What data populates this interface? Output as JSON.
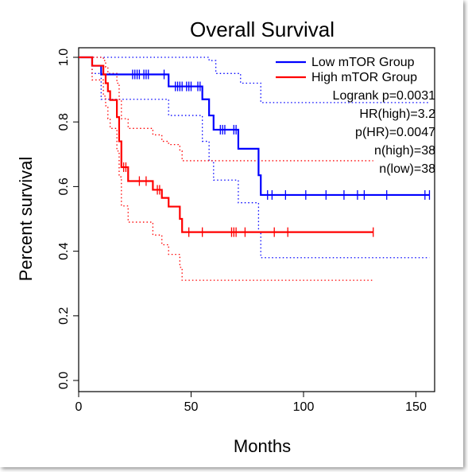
{
  "chart_data": {
    "type": "line",
    "title": "Overall Survival",
    "xlabel": "Months",
    "ylabel": "Percent survival",
    "xlim": [
      0,
      160
    ],
    "ylim": [
      0,
      1
    ],
    "x_ticks": [
      0,
      50,
      100,
      150
    ],
    "x_tick_labels": [
      "0",
      "50",
      "100",
      "150"
    ],
    "y_ticks": [
      0,
      0.2,
      0.4,
      0.6,
      0.8,
      1
    ],
    "y_tick_labels": [
      "0.0",
      "0.2",
      "0.4",
      "0.6",
      "0.8",
      "1.0"
    ],
    "legend_position": "top-right",
    "series": [
      {
        "name": "Low mTOR Group",
        "color": "#0000ff",
        "steps": [
          [
            0,
            1
          ],
          [
            6,
            0.974
          ],
          [
            10,
            0.947
          ],
          [
            40,
            0.91
          ],
          [
            55,
            0.87
          ],
          [
            58,
            0.82
          ],
          [
            60,
            0.776
          ],
          [
            71,
            0.717
          ],
          [
            80,
            0.635
          ],
          [
            81,
            0.574
          ],
          [
            156,
            0.574
          ]
        ],
        "censors": [
          [
            24,
            0.947
          ],
          [
            25,
            0.947
          ],
          [
            26,
            0.947
          ],
          [
            27,
            0.947
          ],
          [
            29,
            0.947
          ],
          [
            30,
            0.947
          ],
          [
            31,
            0.947
          ],
          [
            38,
            0.947
          ],
          [
            43,
            0.91
          ],
          [
            44,
            0.91
          ],
          [
            45,
            0.91
          ],
          [
            46,
            0.91
          ],
          [
            48,
            0.91
          ],
          [
            49,
            0.91
          ],
          [
            50,
            0.91
          ],
          [
            53,
            0.91
          ],
          [
            54,
            0.91
          ],
          [
            63,
            0.776
          ],
          [
            64,
            0.776
          ],
          [
            65,
            0.776
          ],
          [
            69,
            0.776
          ],
          [
            70,
            0.776
          ],
          [
            84,
            0.574
          ],
          [
            86,
            0.574
          ],
          [
            92,
            0.574
          ],
          [
            101,
            0.574
          ],
          [
            110,
            0.574
          ],
          [
            118,
            0.574
          ],
          [
            124,
            0.574
          ],
          [
            127,
            0.574
          ],
          [
            137,
            0.574
          ],
          [
            154,
            0.574
          ],
          [
            156,
            0.574
          ]
        ],
        "ci_upper": [
          [
            0,
            1
          ],
          [
            12,
            1
          ],
          [
            57,
            1
          ],
          [
            58,
            0.99
          ],
          [
            60,
            0.99
          ],
          [
            61,
            0.95
          ],
          [
            70,
            0.95
          ],
          [
            72,
            0.92
          ],
          [
            80,
            0.92
          ],
          [
            81,
            0.86
          ],
          [
            156,
            0.86
          ]
        ],
        "ci_lower": [
          [
            0,
            1
          ],
          [
            6,
            0.95
          ],
          [
            10,
            0.87
          ],
          [
            40,
            0.82
          ],
          [
            55,
            0.74
          ],
          [
            58,
            0.68
          ],
          [
            60,
            0.62
          ],
          [
            71,
            0.55
          ],
          [
            80,
            0.46
          ],
          [
            81,
            0.38
          ],
          [
            156,
            0.38
          ]
        ]
      },
      {
        "name": "High mTOR Group",
        "color": "#ff0000",
        "steps": [
          [
            0,
            1
          ],
          [
            6,
            0.974
          ],
          [
            11,
            0.947
          ],
          [
            12,
            0.92
          ],
          [
            13,
            0.895
          ],
          [
            14,
            0.868
          ],
          [
            17,
            0.815
          ],
          [
            18,
            0.74
          ],
          [
            19,
            0.66
          ],
          [
            22,
            0.617
          ],
          [
            33,
            0.59
          ],
          [
            37,
            0.565
          ],
          [
            40,
            0.538
          ],
          [
            45,
            0.5
          ],
          [
            46,
            0.459
          ],
          [
            131,
            0.459
          ]
        ],
        "censors": [
          [
            20,
            0.66
          ],
          [
            21,
            0.66
          ],
          [
            27,
            0.617
          ],
          [
            30,
            0.617
          ],
          [
            35,
            0.59
          ],
          [
            36,
            0.59
          ],
          [
            49,
            0.459
          ],
          [
            55,
            0.459
          ],
          [
            68,
            0.459
          ],
          [
            69,
            0.459
          ],
          [
            70,
            0.459
          ],
          [
            74,
            0.459
          ],
          [
            87,
            0.459
          ],
          [
            93,
            0.459
          ],
          [
            131,
            0.459
          ]
        ],
        "ci_upper": [
          [
            0,
            1
          ],
          [
            6,
            1
          ],
          [
            11,
            0.99
          ],
          [
            12,
            0.97
          ],
          [
            13,
            0.95
          ],
          [
            14,
            0.95
          ],
          [
            17,
            0.92
          ],
          [
            18,
            0.87
          ],
          [
            19,
            0.81
          ],
          [
            22,
            0.78
          ],
          [
            33,
            0.76
          ],
          [
            37,
            0.74
          ],
          [
            40,
            0.73
          ],
          [
            45,
            0.71
          ],
          [
            46,
            0.68
          ],
          [
            131,
            0.68
          ]
        ],
        "ci_lower": [
          [
            0,
            1
          ],
          [
            6,
            0.93
          ],
          [
            11,
            0.88
          ],
          [
            12,
            0.85
          ],
          [
            13,
            0.81
          ],
          [
            14,
            0.78
          ],
          [
            17,
            0.71
          ],
          [
            18,
            0.63
          ],
          [
            19,
            0.54
          ],
          [
            22,
            0.49
          ],
          [
            33,
            0.45
          ],
          [
            37,
            0.42
          ],
          [
            40,
            0.39
          ],
          [
            45,
            0.35
          ],
          [
            46,
            0.31
          ],
          [
            131,
            0.31
          ]
        ]
      }
    ],
    "annotations": [
      "Logrank p=0.0031",
      "HR(high)=3.2",
      "p(HR)=0.0047",
      "n(high)=38",
      "n(low)=38"
    ]
  }
}
